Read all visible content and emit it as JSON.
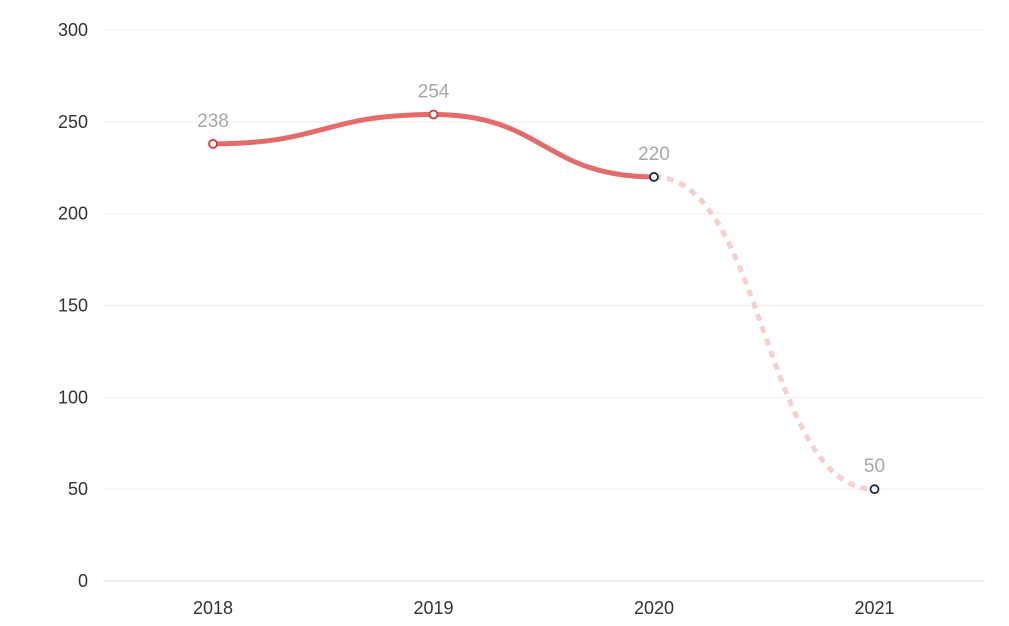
{
  "chart_data": {
    "type": "line",
    "categories": [
      "2018",
      "2019",
      "2020",
      "2021"
    ],
    "values": [
      238,
      254,
      220,
      50
    ],
    "data_labels": [
      "238",
      "254",
      "220",
      "50"
    ],
    "y_ticks": [
      "0",
      "50",
      "100",
      "150",
      "200",
      "250",
      "300"
    ],
    "ylim": [
      0,
      300
    ],
    "grid": true,
    "solid_through_index": 2,
    "colors": {
      "line": "#e36b69",
      "line_projected": "#f7cfcd",
      "point_fill": "#ffffff",
      "point_stroke_actual": "#d33a37",
      "point_stroke_projected": "#1b2a4a"
    }
  }
}
